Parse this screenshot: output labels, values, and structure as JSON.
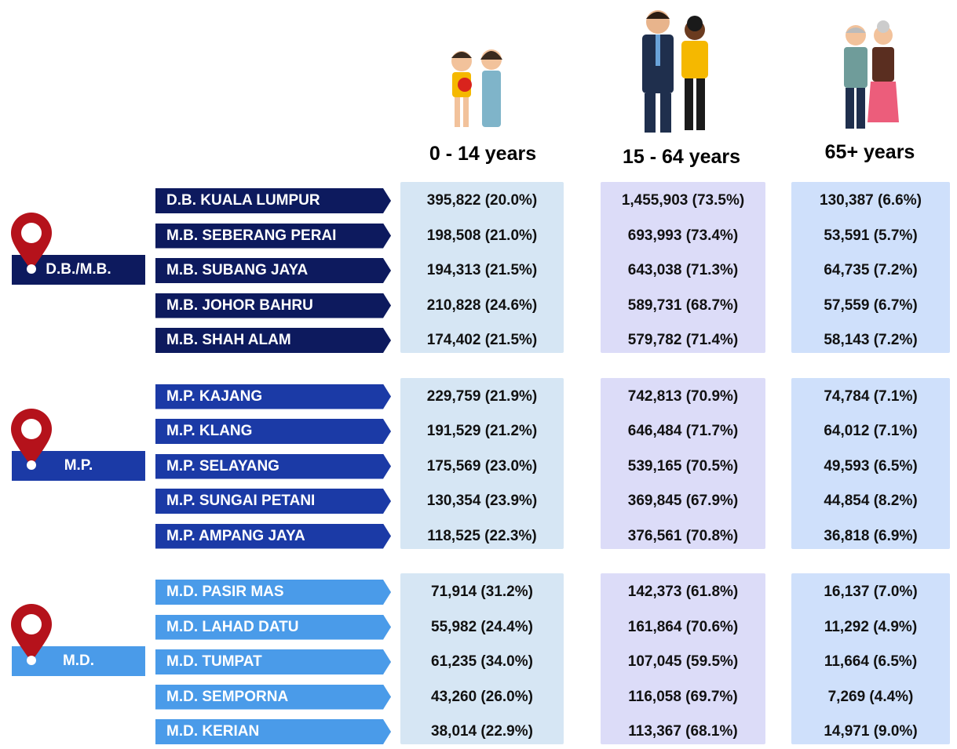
{
  "headers": [
    "0 - 14 years",
    "15 - 64 years",
    "65+ years"
  ],
  "groups": [
    {
      "label": "D.B./M.B.",
      "rows": [
        {
          "name": "D.B. KUALA LUMPUR",
          "cells": [
            "395,822 (20.0%)",
            "1,455,903 (73.5%)",
            "130,387 (6.6%)"
          ]
        },
        {
          "name": "M.B. SEBERANG PERAI",
          "cells": [
            "198,508 (21.0%)",
            "693,993 (73.4%)",
            "53,591 (5.7%)"
          ]
        },
        {
          "name": "M.B. SUBANG JAYA",
          "cells": [
            "194,313 (21.5%)",
            "643,038 (71.3%)",
            "64,735 (7.2%)"
          ]
        },
        {
          "name": "M.B. JOHOR BAHRU",
          "cells": [
            "210,828 (24.6%)",
            "589,731 (68.7%)",
            "57,559 (6.7%)"
          ]
        },
        {
          "name": "M.B. SHAH ALAM",
          "cells": [
            "174,402 (21.5%)",
            "579,782 (71.4%)",
            "58,143 (7.2%)"
          ]
        }
      ]
    },
    {
      "label": "M.P.",
      "rows": [
        {
          "name": "M.P. KAJANG",
          "cells": [
            "229,759 (21.9%)",
            "742,813 (70.9%)",
            "74,784 (7.1%)"
          ]
        },
        {
          "name": "M.P. KLANG",
          "cells": [
            "191,529 (21.2%)",
            "646,484 (71.7%)",
            "64,012 (7.1%)"
          ]
        },
        {
          "name": "M.P. SELAYANG",
          "cells": [
            "175,569 (23.0%)",
            "539,165 (70.5%)",
            "49,593 (6.5%)"
          ]
        },
        {
          "name": "M.P. SUNGAI PETANI",
          "cells": [
            "130,354 (23.9%)",
            "369,845 (67.9%)",
            "44,854 (8.2%)"
          ]
        },
        {
          "name": "M.P. AMPANG JAYA",
          "cells": [
            "118,525 (22.3%)",
            "376,561 (70.8%)",
            "36,818 (6.9%)"
          ]
        }
      ]
    },
    {
      "label": "M.D.",
      "rows": [
        {
          "name": "M.D. PASIR MAS",
          "cells": [
            "71,914 (31.2%)",
            "142,373 (61.8%)",
            "16,137 (7.0%)"
          ]
        },
        {
          "name": "M.D. LAHAD DATU",
          "cells": [
            "55,982 (24.4%)",
            "161,864 (70.6%)",
            "11,292 (4.9%)"
          ]
        },
        {
          "name": "M.D. TUMPAT",
          "cells": [
            "61,235 (34.0%)",
            "107,045 (59.5%)",
            "11,664 (6.5%)"
          ]
        },
        {
          "name": "M.D. SEMPORNA",
          "cells": [
            "43,260 (26.0%)",
            "116,058 (69.7%)",
            "7,269 (4.4%)"
          ]
        },
        {
          "name": "M.D. KERIAN",
          "cells": [
            "38,014 (22.9%)",
            "113,367 (68.1%)",
            "14,971 (9.0%)"
          ]
        }
      ]
    }
  ]
}
